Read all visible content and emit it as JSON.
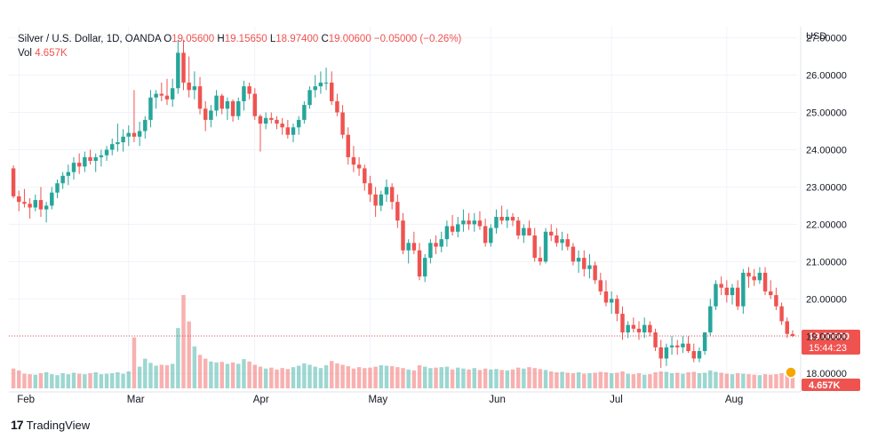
{
  "legend": {
    "symbol": "Silver / U.S. Dollar, 1D, OANDA",
    "o_label": "O",
    "open": "19.05600",
    "h_label": "H",
    "high": "19.15650",
    "l_label": "L",
    "low": "18.97400",
    "c_label": "C",
    "close": "19.00600",
    "change": "−0.05000 (−0.26%)",
    "vol_label": "Vol",
    "volume": "4.657K"
  },
  "price_axis": {
    "currency": "USD",
    "current_price": "19.00600",
    "countdown": "15:44:23",
    "current_volume": "4.657K"
  },
  "brand": {
    "name": "TradingView"
  },
  "colors": {
    "up": "#26a69a",
    "down": "#ef5350",
    "up_vol": "#26a69a",
    "down_vol": "#ef5350"
  },
  "chart_data": {
    "type": "candlestick",
    "y_ticks": [
      "18.00000",
      "19.00000",
      "20.00000",
      "21.00000",
      "22.00000",
      "23.00000",
      "24.00000",
      "25.00000",
      "26.00000",
      "27.00000"
    ],
    "ylim": [
      17.6,
      27.3
    ],
    "months": [
      {
        "label": "Feb",
        "date": "2022-02-01"
      },
      {
        "label": "Mar",
        "date": "2022-03-01"
      },
      {
        "label": "Apr",
        "date": "2022-04-01"
      },
      {
        "label": "May",
        "date": "2022-05-02"
      },
      {
        "label": "Jun",
        "date": "2022-06-01"
      },
      {
        "label": "Jul",
        "date": "2022-07-01"
      },
      {
        "label": "Aug",
        "date": "2022-08-01"
      }
    ],
    "last_price": 19.006,
    "grid": true,
    "candles": [
      [
        23.5,
        23.58,
        22.7,
        22.75,
        4.2
      ],
      [
        22.75,
        22.9,
        22.35,
        22.6,
        3.8
      ],
      [
        22.6,
        22.95,
        22.45,
        22.55,
        3.1
      ],
      [
        22.55,
        22.7,
        22.15,
        22.45,
        3.0
      ],
      [
        22.45,
        22.8,
        22.35,
        22.65,
        2.9
      ],
      [
        22.65,
        23.0,
        22.2,
        22.4,
        3.2
      ],
      [
        22.4,
        22.6,
        22.05,
        22.5,
        3.4
      ],
      [
        22.5,
        23.0,
        22.4,
        22.85,
        3.0
      ],
      [
        22.85,
        23.2,
        22.7,
        23.1,
        2.8
      ],
      [
        23.1,
        23.4,
        22.95,
        23.3,
        3.2
      ],
      [
        23.3,
        23.6,
        23.05,
        23.4,
        3.0
      ],
      [
        23.4,
        23.8,
        23.2,
        23.65,
        3.3
      ],
      [
        23.65,
        23.9,
        23.35,
        23.55,
        3.1
      ],
      [
        23.55,
        23.95,
        23.4,
        23.8,
        3.0
      ],
      [
        23.8,
        24.0,
        23.6,
        23.7,
        3.2
      ],
      [
        23.7,
        23.9,
        23.4,
        23.8,
        3.4
      ],
      [
        23.8,
        24.0,
        23.55,
        23.85,
        3.0
      ],
      [
        23.85,
        24.1,
        23.7,
        24.0,
        3.1
      ],
      [
        24.0,
        24.3,
        23.85,
        24.15,
        3.2
      ],
      [
        24.15,
        24.7,
        23.95,
        24.2,
        3.4
      ],
      [
        24.2,
        24.55,
        23.95,
        24.35,
        3.1
      ],
      [
        24.35,
        24.65,
        24.1,
        24.45,
        3.6
      ],
      [
        24.45,
        25.6,
        24.2,
        24.35,
        10.8
      ],
      [
        24.35,
        24.75,
        24.1,
        24.5,
        4.6
      ],
      [
        24.5,
        24.9,
        24.3,
        24.8,
        6.3
      ],
      [
        24.8,
        25.6,
        24.6,
        25.4,
        5.4
      ],
      [
        25.4,
        25.6,
        25.1,
        25.5,
        4.8
      ],
      [
        25.5,
        25.8,
        25.3,
        25.45,
        5.0
      ],
      [
        25.45,
        25.9,
        25.2,
        25.35,
        4.9
      ],
      [
        25.35,
        25.9,
        25.15,
        25.65,
        5.2
      ],
      [
        25.65,
        26.95,
        25.5,
        26.6,
        12.8
      ],
      [
        26.6,
        26.95,
        25.6,
        25.8,
        19.8
      ],
      [
        25.8,
        26.5,
        25.4,
        25.6,
        14.2
      ],
      [
        25.6,
        26.1,
        25.35,
        25.7,
        8.9
      ],
      [
        25.7,
        25.95,
        24.95,
        25.1,
        7.1
      ],
      [
        25.1,
        25.3,
        24.5,
        24.8,
        6.3
      ],
      [
        24.8,
        25.2,
        24.6,
        25.05,
        5.7
      ],
      [
        25.05,
        25.6,
        24.9,
        25.45,
        5.5
      ],
      [
        25.45,
        25.5,
        24.95,
        25.1,
        5.6
      ],
      [
        25.1,
        25.4,
        24.8,
        25.3,
        5.2
      ],
      [
        25.3,
        25.35,
        24.75,
        24.9,
        5.5
      ],
      [
        24.9,
        25.4,
        24.8,
        25.3,
        5.2
      ],
      [
        25.3,
        25.85,
        25.05,
        25.7,
        6.2
      ],
      [
        25.7,
        25.8,
        25.35,
        25.5,
        5.7
      ],
      [
        25.5,
        25.65,
        24.8,
        24.9,
        5.0
      ],
      [
        24.9,
        24.95,
        23.95,
        24.7,
        4.6
      ],
      [
        24.7,
        25.0,
        24.55,
        24.85,
        4.2
      ],
      [
        24.85,
        25.0,
        24.7,
        24.8,
        4.4
      ],
      [
        24.8,
        24.9,
        24.55,
        24.7,
        4.0
      ],
      [
        24.7,
        24.85,
        24.4,
        24.6,
        4.3
      ],
      [
        24.6,
        24.8,
        24.3,
        24.4,
        4.1
      ],
      [
        24.4,
        24.7,
        24.2,
        24.6,
        4.5
      ],
      [
        24.6,
        24.9,
        24.4,
        24.8,
        4.8
      ],
      [
        24.8,
        25.3,
        24.7,
        25.2,
        5.3
      ],
      [
        25.2,
        25.7,
        25.1,
        25.6,
        5.0
      ],
      [
        25.6,
        26.0,
        25.4,
        25.7,
        4.6
      ],
      [
        25.7,
        26.1,
        25.5,
        25.8,
        4.3
      ],
      [
        25.8,
        26.2,
        25.6,
        25.8,
        4.9
      ],
      [
        25.8,
        26.1,
        25.2,
        25.3,
        5.8
      ],
      [
        25.3,
        25.5,
        24.9,
        25.0,
        5.3
      ],
      [
        25.0,
        25.2,
        24.3,
        24.4,
        5.0
      ],
      [
        24.4,
        24.6,
        23.6,
        23.8,
        4.7
      ],
      [
        23.8,
        24.1,
        23.4,
        23.6,
        4.2
      ],
      [
        23.6,
        23.8,
        23.3,
        23.5,
        4.5
      ],
      [
        23.5,
        23.6,
        22.9,
        23.1,
        4.3
      ],
      [
        23.1,
        23.3,
        22.6,
        22.8,
        4.4
      ],
      [
        22.8,
        23.0,
        22.2,
        22.5,
        4.6
      ],
      [
        22.5,
        22.9,
        22.35,
        22.8,
        4.9
      ],
      [
        22.8,
        23.2,
        22.6,
        23.0,
        4.8
      ],
      [
        23.0,
        23.1,
        22.4,
        22.6,
        4.7
      ],
      [
        22.6,
        22.8,
        21.9,
        22.1,
        4.5
      ],
      [
        22.1,
        22.3,
        21.2,
        21.3,
        4.3
      ],
      [
        21.3,
        21.6,
        20.95,
        21.5,
        4.0
      ],
      [
        21.5,
        21.8,
        21.2,
        21.3,
        3.8
      ],
      [
        21.3,
        21.5,
        20.5,
        20.6,
        4.9
      ],
      [
        20.6,
        21.2,
        20.45,
        21.1,
        4.6
      ],
      [
        21.1,
        21.6,
        20.95,
        21.5,
        4.3
      ],
      [
        21.5,
        21.7,
        21.2,
        21.4,
        4.4
      ],
      [
        21.4,
        21.8,
        21.25,
        21.6,
        4.5
      ],
      [
        21.6,
        22.1,
        21.4,
        21.95,
        4.6
      ],
      [
        21.95,
        22.25,
        21.7,
        21.8,
        4.0
      ],
      [
        21.8,
        22.2,
        21.65,
        22.0,
        4.4
      ],
      [
        22.0,
        22.4,
        21.8,
        22.1,
        4.2
      ],
      [
        22.1,
        22.3,
        21.85,
        22.0,
        4.0
      ],
      [
        22.0,
        22.3,
        21.8,
        22.1,
        4.3
      ],
      [
        22.1,
        22.35,
        21.85,
        21.95,
        3.9
      ],
      [
        21.95,
        22.15,
        21.4,
        21.5,
        4.2
      ],
      [
        21.5,
        22.0,
        21.4,
        21.9,
        4.0
      ],
      [
        21.9,
        22.4,
        21.75,
        22.2,
        4.1
      ],
      [
        22.2,
        22.5,
        22.0,
        22.1,
        3.9
      ],
      [
        22.1,
        22.4,
        21.9,
        22.2,
        3.8
      ],
      [
        22.2,
        22.3,
        21.95,
        22.1,
        4.0
      ],
      [
        22.1,
        22.2,
        21.6,
        21.7,
        4.4
      ],
      [
        21.7,
        22.0,
        21.5,
        21.9,
        4.2
      ],
      [
        21.9,
        22.1,
        21.7,
        21.7,
        4.5
      ],
      [
        21.7,
        21.9,
        21.0,
        21.1,
        4.3
      ],
      [
        21.1,
        21.4,
        20.9,
        21.0,
        4.1
      ],
      [
        21.0,
        21.9,
        20.95,
        21.8,
        3.9
      ],
      [
        21.8,
        22.0,
        21.55,
        21.7,
        3.6
      ],
      [
        21.7,
        21.9,
        21.4,
        21.5,
        3.4
      ],
      [
        21.5,
        21.8,
        21.3,
        21.6,
        3.5
      ],
      [
        21.6,
        21.75,
        21.3,
        21.4,
        3.3
      ],
      [
        21.4,
        21.5,
        20.9,
        21.0,
        3.2
      ],
      [
        21.0,
        21.3,
        20.7,
        21.1,
        3.4
      ],
      [
        21.1,
        21.3,
        20.6,
        20.8,
        3.1
      ],
      [
        20.8,
        21.2,
        20.55,
        20.9,
        3.2
      ],
      [
        20.9,
        21.0,
        20.4,
        20.5,
        3.3
      ],
      [
        20.5,
        20.7,
        20.1,
        20.2,
        3.5
      ],
      [
        20.2,
        20.5,
        19.8,
        19.9,
        3.4
      ],
      [
        19.9,
        20.2,
        19.6,
        20.0,
        3.2
      ],
      [
        20.0,
        20.1,
        19.4,
        19.6,
        3.3
      ],
      [
        19.6,
        19.8,
        18.9,
        19.1,
        3.6
      ],
      [
        19.1,
        19.4,
        18.95,
        19.3,
        3.1
      ],
      [
        19.3,
        19.5,
        19.1,
        19.2,
        3.0
      ],
      [
        19.2,
        19.4,
        18.9,
        19.1,
        3.2
      ],
      [
        19.1,
        19.5,
        18.95,
        19.3,
        2.9
      ],
      [
        19.3,
        19.4,
        19.0,
        19.1,
        3.0
      ],
      [
        19.1,
        19.2,
        18.6,
        18.7,
        3.4
      ],
      [
        18.7,
        18.9,
        18.15,
        18.4,
        3.6
      ],
      [
        18.4,
        18.8,
        18.2,
        18.7,
        3.5
      ],
      [
        18.7,
        19.0,
        18.5,
        18.75,
        3.2
      ],
      [
        18.75,
        18.9,
        18.5,
        18.7,
        3.3
      ],
      [
        18.7,
        19.0,
        18.55,
        18.8,
        3.1
      ],
      [
        18.8,
        19.0,
        18.55,
        18.6,
        3.4
      ],
      [
        18.6,
        18.8,
        18.3,
        18.4,
        3.5
      ],
      [
        18.4,
        18.7,
        18.3,
        18.6,
        3.2
      ],
      [
        18.6,
        19.1,
        18.5,
        19.1,
        3.3
      ],
      [
        19.1,
        20.0,
        19.0,
        19.8,
        3.8
      ],
      [
        19.8,
        20.5,
        19.7,
        20.4,
        3.5
      ],
      [
        20.4,
        20.6,
        20.1,
        20.3,
        3.3
      ],
      [
        20.3,
        20.5,
        19.9,
        20.1,
        3.1
      ],
      [
        20.1,
        20.4,
        19.85,
        20.3,
        3.0
      ],
      [
        20.3,
        20.5,
        19.7,
        19.8,
        3.2
      ],
      [
        19.8,
        20.8,
        19.6,
        20.7,
        3.1
      ],
      [
        20.7,
        20.85,
        20.3,
        20.6,
        3.0
      ],
      [
        20.6,
        20.8,
        20.35,
        20.5,
        2.9
      ],
      [
        20.5,
        20.85,
        20.4,
        20.7,
        2.8
      ],
      [
        20.7,
        20.85,
        20.1,
        20.2,
        3.0
      ],
      [
        20.2,
        20.5,
        20.0,
        20.1,
        2.9
      ],
      [
        20.1,
        20.3,
        19.7,
        19.8,
        3.0
      ],
      [
        19.8,
        19.9,
        19.3,
        19.4,
        3.2
      ],
      [
        19.4,
        19.5,
        18.95,
        19.06,
        3.3
      ],
      [
        19.056,
        19.1565,
        18.974,
        19.006,
        2.6
      ]
    ]
  }
}
